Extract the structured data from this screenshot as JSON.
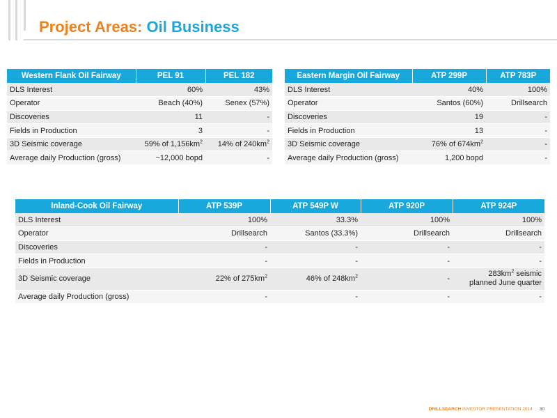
{
  "header": {
    "title_part1": "Project Areas:",
    "title_part2": "Oil Business"
  },
  "western_table": {
    "headers": [
      "Western Flank Oil Fairway",
      "PEL 91",
      "PEL 182"
    ],
    "rows": [
      {
        "label": "DLS Interest",
        "c1": "60%",
        "c2": "43%"
      },
      {
        "label": "Operator",
        "c1": "Beach (40%)",
        "c2": "Senex (57%)"
      },
      {
        "label": "Discoveries",
        "c1": "11",
        "c2": "-"
      },
      {
        "label": "Fields in Production",
        "c1": "3",
        "c2": "-"
      },
      {
        "label": "3D Seismic coverage",
        "c1": "59% of 1,156km",
        "c1_sup": "2",
        "c2": "14% of 240km",
        "c2_sup": "2"
      },
      {
        "label": "Average daily Production (gross)",
        "c1": "~12,000 bopd",
        "c2": "-"
      }
    ]
  },
  "eastern_table": {
    "headers": [
      "Eastern Margin Oil Fairway",
      "ATP 299P",
      "ATP 783P"
    ],
    "rows": [
      {
        "label": "DLS Interest",
        "c1": "40%",
        "c2": "100%"
      },
      {
        "label": "Operator",
        "c1": "Santos (60%)",
        "c2": "Drillsearch"
      },
      {
        "label": "Discoveries",
        "c1": "19",
        "c2": "-"
      },
      {
        "label": "Fields in Production",
        "c1": "13",
        "c2": "-"
      },
      {
        "label": "3D Seismic coverage",
        "c1": "76% of 674km",
        "c1_sup": "2",
        "c2": "-"
      },
      {
        "label": "Average daily Production (gross)",
        "c1": "1,200 bopd",
        "c2": "-"
      }
    ]
  },
  "inland_table": {
    "headers": [
      "Inland-Cook Oil Fairway",
      "ATP 539P",
      "ATP 549P W",
      "ATP 920P",
      "ATP 924P"
    ],
    "rows": [
      {
        "label": "DLS Interest",
        "c1": "100%",
        "c2": "33.3%",
        "c3": "100%",
        "c4": "100%"
      },
      {
        "label": "Operator",
        "c1": "Drillsearch",
        "c2": "Santos (33.3%)",
        "c3": "Drillsearch",
        "c4": "Drillsearch"
      },
      {
        "label": "Discoveries",
        "c1": "-",
        "c2": "-",
        "c3": "-",
        "c4": "-"
      },
      {
        "label": "Fields in Production",
        "c1": "-",
        "c2": "-",
        "c3": "-",
        "c4": "-"
      },
      {
        "label": "3D Seismic coverage",
        "c1": "22% of 275km",
        "c1_sup": "2",
        "c2": "46% of 248km",
        "c2_sup": "2",
        "c3": "-",
        "c4_a": "283km",
        "c4_sup": "2",
        "c4_b": " seismic",
        "c4_line2": "planned June quarter"
      },
      {
        "label": "Average daily Production (gross)",
        "c1": "-",
        "c2": "-",
        "c3": "-",
        "c4": "-"
      }
    ]
  },
  "footer": {
    "brand": "DRILLSEARCH",
    "text": " INVESTOR PRESENTATION 2014",
    "page_number": "30"
  }
}
